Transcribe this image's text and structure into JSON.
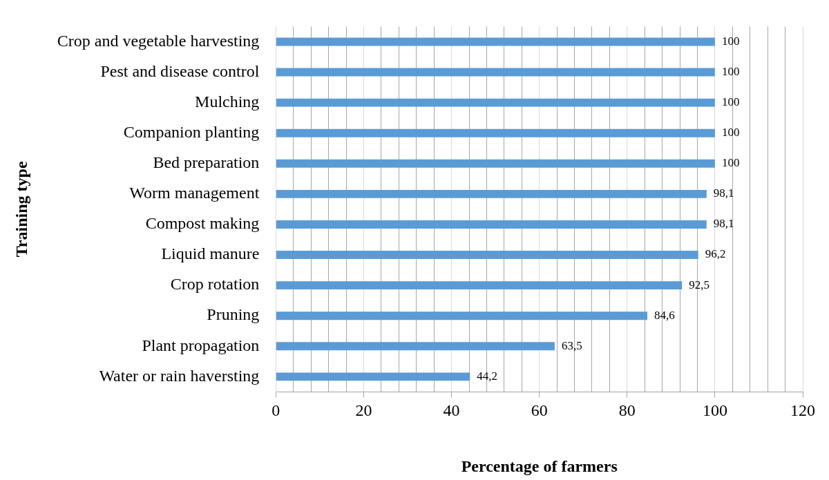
{
  "chart_data": {
    "type": "bar",
    "orientation": "horizontal",
    "xlabel": "Percentage of farmers",
    "ylabel": "Training type",
    "categories": [
      "Crop and vegetable harvesting",
      "Pest and disease control",
      "Mulching",
      "Companion planting",
      "Bed preparation",
      "Worm management",
      "Compost making",
      "Liquid manure",
      "Crop rotation",
      "Pruning",
      "Plant propagation",
      "Water or rain haversting"
    ],
    "values": [
      100,
      100,
      100,
      100,
      100,
      98.1,
      98.1,
      96.2,
      92.5,
      84.6,
      63.5,
      44.2
    ],
    "value_labels": [
      "100",
      "100",
      "100",
      "100",
      "100",
      "98,1",
      "98,1",
      "96,2",
      "92,5",
      "84,6",
      "63,5",
      "44,2"
    ],
    "color": "#5b9bd5",
    "xlim": [
      0,
      120
    ],
    "xticks": [
      0,
      {
        "value": 4,
        "label": null
      },
      {
        "value": 8,
        "label": null
      },
      {
        "value": 12,
        "label": null
      },
      {
        "value": 16,
        "label": null
      },
      20,
      {
        "value": 24,
        "label": null
      },
      {
        "value": 28,
        "label": null
      },
      {
        "value": 32,
        "label": null
      },
      {
        "value": 36,
        "label": null
      },
      40,
      {
        "value": 44,
        "label": null
      },
      {
        "value": 48,
        "label": null
      },
      {
        "value": 52,
        "label": null
      },
      {
        "value": 56,
        "label": null
      },
      60,
      {
        "value": 64,
        "label": null
      },
      {
        "value": 68,
        "label": null
      },
      {
        "value": 72,
        "label": null
      },
      {
        "value": 76,
        "label": null
      },
      80,
      {
        "value": 84,
        "label": null
      },
      {
        "value": 88,
        "label": null
      },
      {
        "value": 92,
        "label": null
      },
      {
        "value": 96,
        "label": null
      },
      100,
      {
        "value": 104,
        "label": null
      },
      {
        "value": 108,
        "label": null
      },
      {
        "value": 112,
        "label": null
      },
      {
        "value": 116,
        "label": null
      },
      120
    ],
    "grid": "x",
    "legend": false
  }
}
